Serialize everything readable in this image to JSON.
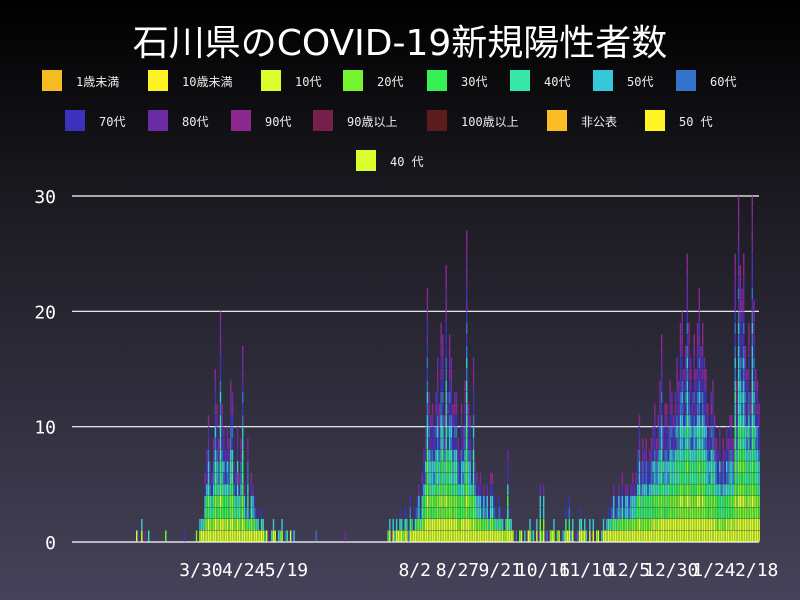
{
  "title": "石川県のCOVID-19新規陽性者数",
  "legend": [
    {
      "label": "1歳未満",
      "color": "#f6bc22"
    },
    {
      "label": "10歳未満",
      "color": "#fff224"
    },
    {
      "label": "10代",
      "color": "#d8ff2c"
    },
    {
      "label": "20代",
      "color": "#74f52f"
    },
    {
      "label": "30代",
      "color": "#36f155"
    },
    {
      "label": "40代",
      "color": "#38e8a8"
    },
    {
      "label": "50代",
      "color": "#36c8d8"
    },
    {
      "label": "60代",
      "color": "#3472cc"
    },
    {
      "label": "70代",
      "color": "#3a31bf"
    },
    {
      "label": "80代",
      "color": "#6b2aa6"
    },
    {
      "label": "90代",
      "color": "#8c2890"
    },
    {
      "label": "90歳以上",
      "color": "#761e4c"
    },
    {
      "label": "100歳以上",
      "color": "#5c1b1d"
    },
    {
      "label": "非公表",
      "color": "#fbbd24"
    },
    {
      "label": "50 代",
      "color": "#fff424"
    },
    {
      "label": "40 代",
      "color": "#d9ff2e"
    }
  ],
  "chart_data": {
    "type": "bar",
    "stacked": true,
    "title": "石川県のCOVID-19新規陽性者数",
    "x_start": "2020-02-21",
    "x_interval": "day",
    "x_tick_labels": [
      "3/30",
      "4/24",
      "5/19",
      "8/2",
      "8/27",
      "9/21",
      "10/16",
      "11/10",
      "12/5",
      "12/30",
      "1/24",
      "2/18"
    ],
    "y_ticks": [
      0,
      10,
      20,
      30
    ],
    "ylim": [
      0,
      30
    ],
    "grid": "horizontal",
    "legend_position": "top",
    "daily_totals": [
      1,
      1,
      0,
      2,
      0,
      1,
      0,
      1,
      0,
      0,
      0,
      0,
      0,
      0,
      0,
      0,
      0,
      1,
      0,
      0,
      0,
      0,
      0,
      0,
      0,
      0,
      0,
      0,
      1,
      0,
      0,
      0,
      0,
      0,
      0,
      1,
      0,
      2,
      2,
      2,
      6,
      8,
      11,
      7,
      6,
      9,
      15,
      12,
      9,
      20,
      12,
      10,
      8,
      10,
      9,
      14,
      13,
      7,
      6,
      10,
      6,
      9,
      17,
      5,
      4,
      9,
      3,
      6,
      5,
      4,
      2,
      3,
      1,
      3,
      2,
      1,
      1,
      1,
      0,
      1,
      2,
      1,
      0,
      1,
      1,
      2,
      0,
      1,
      1,
      0,
      1,
      1,
      1,
      0,
      0,
      0,
      0,
      0,
      0,
      0,
      0,
      0,
      0,
      0,
      0,
      1,
      0,
      0,
      0,
      0,
      0,
      0,
      0,
      0,
      0,
      0,
      0,
      0,
      0,
      0,
      0,
      0,
      1,
      0,
      0,
      0,
      0,
      0,
      0,
      0,
      0,
      0,
      0,
      0,
      0,
      0,
      0,
      0,
      0,
      0,
      0,
      0,
      0,
      0,
      0,
      0,
      0,
      1,
      2,
      1,
      2,
      1,
      2,
      1,
      3,
      2,
      1,
      3,
      2,
      1,
      4,
      2,
      1,
      3,
      4,
      5,
      3,
      6,
      8,
      10,
      22,
      13,
      11,
      12,
      10,
      13,
      16,
      12,
      19,
      18,
      11,
      24,
      13,
      18,
      16,
      12,
      13,
      13,
      9,
      8,
      12,
      10,
      14,
      27,
      12,
      11,
      8,
      16,
      7,
      6,
      5,
      6,
      4,
      5,
      4,
      5,
      3,
      6,
      6,
      4,
      3,
      2,
      4,
      3,
      2,
      1,
      3,
      8,
      3,
      2,
      1,
      0,
      1,
      0,
      1,
      1,
      0,
      1,
      0,
      1,
      2,
      1,
      1,
      0,
      2,
      1,
      5,
      1,
      5,
      1,
      1,
      0,
      1,
      1,
      2,
      0,
      1,
      1,
      0,
      1,
      1,
      3,
      1,
      4,
      1,
      2,
      0,
      1,
      1,
      2,
      3,
      1,
      2,
      1,
      0,
      2,
      1,
      2,
      0,
      1,
      1,
      0,
      1,
      2,
      1,
      2,
      3,
      2,
      4,
      5,
      3,
      4,
      5,
      4,
      6,
      4,
      5,
      5,
      4,
      5,
      6,
      5,
      6,
      8,
      11,
      7,
      9,
      8,
      9,
      7,
      8,
      9,
      10,
      12,
      9,
      11,
      14,
      18,
      10,
      12,
      12,
      10,
      14,
      13,
      11,
      13,
      16,
      14,
      19,
      20,
      15,
      17,
      25,
      19,
      16,
      13,
      18,
      15,
      19,
      22,
      17,
      19,
      16,
      15,
      12,
      10,
      13,
      14,
      11,
      9,
      8,
      10,
      7,
      9,
      8,
      10,
      9,
      11,
      11,
      9,
      25,
      14,
      30,
      24,
      22,
      25,
      17,
      15,
      19,
      13,
      30,
      21,
      15,
      14,
      12
    ]
  }
}
